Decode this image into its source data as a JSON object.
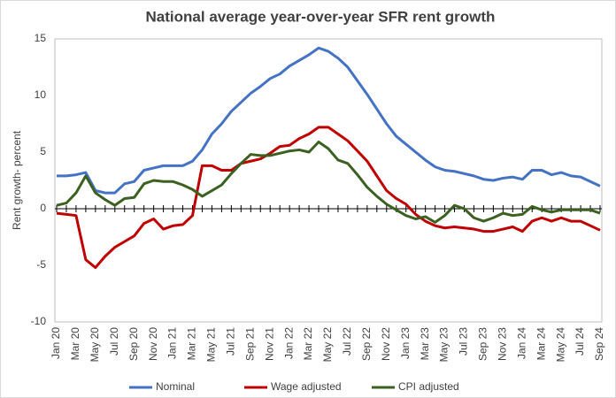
{
  "chart_data": {
    "type": "line",
    "title": "National average year-over-year SFR rent growth",
    "y_label": "Rent growth- percent",
    "categories": [
      "Jan 20",
      null,
      "Mar 20",
      null,
      "May 20",
      null,
      "Jul 20",
      null,
      "Sep 20",
      null,
      "Nov 20",
      null,
      "Jan 21",
      null,
      "Mar 21",
      null,
      "May 21",
      null,
      "Jul 21",
      null,
      "Sep 21",
      null,
      "Nov 21",
      null,
      "Jan 22",
      null,
      "Mar 22",
      null,
      "May 22",
      null,
      "Jul 22",
      null,
      "Sep 22",
      null,
      "Nov 22",
      null,
      "Jan 23",
      null,
      "Mar 23",
      null,
      "May 23",
      null,
      "Jul 23",
      null,
      "Sep 23",
      null,
      "Nov 23",
      null,
      "Jan 24",
      null,
      "Mar 24",
      null,
      "May 24",
      null,
      "Jul 24",
      null,
      "Sep 24"
    ],
    "series": [
      {
        "name": "Nominal",
        "color": "#4472c4",
        "values": [
          2.9,
          2.9,
          3.0,
          3.2,
          1.6,
          1.4,
          1.4,
          2.2,
          2.4,
          3.4,
          3.6,
          3.8,
          3.8,
          3.8,
          4.2,
          5.2,
          6.6,
          7.5,
          8.6,
          9.4,
          10.2,
          10.8,
          11.5,
          11.9,
          12.6,
          13.1,
          13.6,
          14.2,
          13.9,
          13.3,
          12.5,
          11.3,
          10.1,
          8.8,
          7.5,
          6.4,
          5.7,
          5.0,
          4.3,
          3.7,
          3.4,
          3.3,
          3.1,
          2.9,
          2.6,
          2.5,
          2.7,
          2.8,
          2.6,
          3.4,
          3.4,
          3.0,
          3.2,
          2.9,
          2.8,
          2.4,
          2.0
        ]
      },
      {
        "name": "Wage adjusted",
        "color": "#c00000",
        "values": [
          -0.4,
          -0.5,
          -0.6,
          -4.5,
          -5.2,
          -4.2,
          -3.4,
          -2.9,
          -2.4,
          -1.3,
          -0.9,
          -1.8,
          -1.5,
          -1.4,
          -0.6,
          3.8,
          3.8,
          3.4,
          3.4,
          4.0,
          4.2,
          4.4,
          4.9,
          5.5,
          5.6,
          6.2,
          6.6,
          7.2,
          7.2,
          6.6,
          6.0,
          5.1,
          4.2,
          2.9,
          1.6,
          0.9,
          0.4,
          -0.5,
          -1.1,
          -1.5,
          -1.7,
          -1.6,
          -1.7,
          -1.8,
          -2.0,
          -2.0,
          -1.8,
          -1.6,
          -2.0,
          -1.1,
          -0.8,
          -1.1,
          -0.8,
          -1.1,
          -1.1,
          -1.5,
          -1.9
        ]
      },
      {
        "name": "CPI adjusted",
        "color": "#3b6121",
        "values": [
          0.3,
          0.5,
          1.4,
          2.9,
          1.4,
          0.8,
          0.3,
          0.9,
          1.0,
          2.2,
          2.5,
          2.4,
          2.4,
          2.1,
          1.7,
          1.1,
          1.6,
          2.1,
          3.1,
          4.0,
          4.8,
          4.7,
          4.7,
          4.9,
          5.1,
          5.2,
          5.0,
          5.9,
          5.3,
          4.3,
          4.0,
          3.0,
          1.9,
          1.1,
          0.4,
          -0.1,
          -0.6,
          -0.9,
          -0.7,
          -1.2,
          -0.6,
          0.3,
          0.0,
          -0.8,
          -1.1,
          -0.8,
          -0.4,
          -0.6,
          -0.5,
          0.2,
          -0.1,
          -0.3,
          -0.1,
          -0.1,
          -0.1,
          -0.1,
          -0.4
        ]
      }
    ],
    "ylim": [
      -10,
      15
    ],
    "yticks": [
      -10,
      -5,
      0,
      5,
      10,
      15
    ],
    "grid": false,
    "legend": "bottom"
  }
}
